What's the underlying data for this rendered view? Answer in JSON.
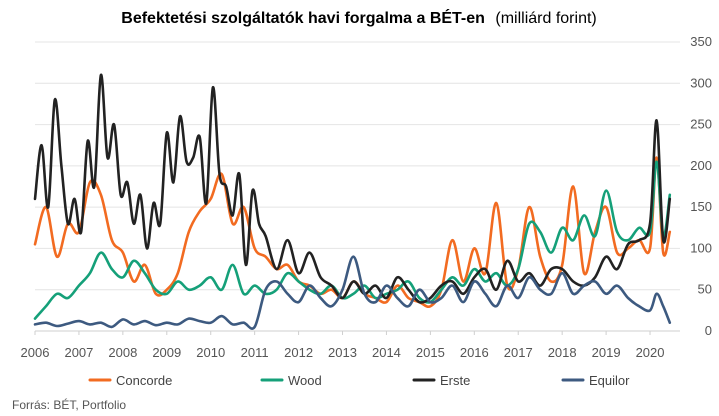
{
  "chart_data": {
    "type": "line",
    "title": "Befektetési szolgáltatók havi forgalma a BÉT-en",
    "title_unit": "(milliárd forint)",
    "source": "Forrás: BÉT, Portfolio",
    "ylim": [
      0,
      350
    ],
    "yticks": [
      "0",
      "50",
      "100",
      "150",
      "200",
      "250",
      "300",
      "350"
    ],
    "xlim": [
      2006,
      2020.5
    ],
    "xticks": [
      "2006",
      "2007",
      "2008",
      "2009",
      "2010",
      "2011",
      "2012",
      "2013",
      "2014",
      "2015",
      "2016",
      "2017",
      "2018",
      "2019",
      "2020"
    ],
    "grid": "horizontal",
    "legend_position": "bottom",
    "series": [
      {
        "name": "Concorde",
        "color": "#F26B21",
        "x": [
          2006.0,
          2006.25,
          2006.5,
          2006.75,
          2007.0,
          2007.25,
          2007.5,
          2007.75,
          2008.0,
          2008.25,
          2008.5,
          2008.75,
          2009.0,
          2009.25,
          2009.5,
          2009.75,
          2010.0,
          2010.25,
          2010.5,
          2010.75,
          2011.0,
          2011.25,
          2011.5,
          2011.75,
          2012.0,
          2012.25,
          2012.5,
          2012.75,
          2013.0,
          2013.25,
          2013.5,
          2013.75,
          2014.0,
          2014.25,
          2014.5,
          2014.75,
          2015.0,
          2015.25,
          2015.5,
          2015.75,
          2016.0,
          2016.25,
          2016.5,
          2016.75,
          2017.0,
          2017.25,
          2017.5,
          2017.75,
          2018.0,
          2018.25,
          2018.5,
          2018.75,
          2019.0,
          2019.25,
          2019.5,
          2019.75,
          2020.0,
          2020.15,
          2020.3,
          2020.45
        ],
        "values": [
          105,
          150,
          90,
          130,
          120,
          180,
          165,
          110,
          95,
          60,
          80,
          45,
          50,
          70,
          120,
          145,
          160,
          190,
          130,
          150,
          100,
          90,
          75,
          80,
          60,
          55,
          45,
          50,
          40,
          60,
          45,
          40,
          35,
          55,
          40,
          35,
          30,
          50,
          110,
          60,
          100,
          70,
          155,
          55,
          75,
          150,
          90,
          60,
          80,
          175,
          70,
          120,
          150,
          95,
          100,
          110,
          100,
          210,
          95,
          120
        ]
      },
      {
        "name": "Wood",
        "color": "#15A079",
        "x": [
          2006.0,
          2006.25,
          2006.5,
          2006.75,
          2007.0,
          2007.25,
          2007.5,
          2007.75,
          2008.0,
          2008.25,
          2008.5,
          2008.75,
          2009.0,
          2009.25,
          2009.5,
          2009.75,
          2010.0,
          2010.25,
          2010.5,
          2010.75,
          2011.0,
          2011.25,
          2011.5,
          2011.75,
          2012.0,
          2012.25,
          2012.5,
          2012.75,
          2013.0,
          2013.25,
          2013.5,
          2013.75,
          2014.0,
          2014.25,
          2014.5,
          2014.75,
          2015.0,
          2015.25,
          2015.5,
          2015.75,
          2016.0,
          2016.25,
          2016.5,
          2016.75,
          2017.0,
          2017.25,
          2017.5,
          2017.75,
          2018.0,
          2018.25,
          2018.5,
          2018.75,
          2019.0,
          2019.25,
          2019.5,
          2019.75,
          2020.0,
          2020.15,
          2020.3,
          2020.45
        ],
        "values": [
          15,
          30,
          45,
          40,
          55,
          70,
          95,
          75,
          65,
          85,
          70,
          50,
          45,
          60,
          50,
          55,
          65,
          50,
          80,
          45,
          55,
          45,
          50,
          70,
          60,
          50,
          45,
          55,
          40,
          45,
          55,
          40,
          45,
          50,
          60,
          40,
          35,
          50,
          65,
          55,
          75,
          60,
          70,
          55,
          75,
          130,
          120,
          95,
          125,
          110,
          140,
          115,
          170,
          120,
          110,
          125,
          120,
          205,
          115,
          165
        ]
      },
      {
        "name": "Erste",
        "color": "#222222",
        "x": [
          2006.0,
          2006.15,
          2006.3,
          2006.45,
          2006.6,
          2006.75,
          2006.9,
          2007.05,
          2007.2,
          2007.35,
          2007.5,
          2007.65,
          2007.8,
          2007.95,
          2008.1,
          2008.25,
          2008.4,
          2008.55,
          2008.7,
          2008.85,
          2009.0,
          2009.15,
          2009.3,
          2009.45,
          2009.6,
          2009.75,
          2009.9,
          2010.05,
          2010.2,
          2010.35,
          2010.5,
          2010.65,
          2010.8,
          2010.95,
          2011.1,
          2011.25,
          2011.5,
          2011.75,
          2012.0,
          2012.25,
          2012.5,
          2012.75,
          2013.0,
          2013.25,
          2013.5,
          2013.75,
          2014.0,
          2014.25,
          2014.5,
          2014.75,
          2015.0,
          2015.25,
          2015.5,
          2015.75,
          2016.0,
          2016.25,
          2016.5,
          2016.75,
          2017.0,
          2017.25,
          2017.5,
          2017.75,
          2018.0,
          2018.25,
          2018.5,
          2018.75,
          2019.0,
          2019.25,
          2019.5,
          2019.75,
          2020.0,
          2020.15,
          2020.3,
          2020.45
        ],
        "values": [
          160,
          225,
          150,
          280,
          200,
          130,
          160,
          120,
          230,
          175,
          310,
          210,
          250,
          165,
          180,
          130,
          165,
          100,
          155,
          130,
          240,
          180,
          260,
          205,
          210,
          235,
          155,
          295,
          190,
          175,
          140,
          190,
          80,
          170,
          130,
          115,
          75,
          110,
          70,
          95,
          65,
          55,
          40,
          60,
          45,
          55,
          40,
          65,
          50,
          35,
          40,
          55,
          60,
          45,
          65,
          75,
          50,
          85,
          60,
          70,
          55,
          75,
          75,
          60,
          55,
          65,
          90,
          75,
          105,
          110,
          130,
          255,
          110,
          160
        ]
      },
      {
        "name": "Equilor",
        "color": "#3D5A80",
        "x": [
          2006.0,
          2006.25,
          2006.5,
          2006.75,
          2007.0,
          2007.25,
          2007.5,
          2007.75,
          2008.0,
          2008.25,
          2008.5,
          2008.75,
          2009.0,
          2009.25,
          2009.5,
          2009.75,
          2010.0,
          2010.25,
          2010.5,
          2010.75,
          2011.0,
          2011.25,
          2011.5,
          2011.75,
          2012.0,
          2012.25,
          2012.5,
          2012.75,
          2013.0,
          2013.25,
          2013.5,
          2013.75,
          2014.0,
          2014.25,
          2014.5,
          2014.75,
          2015.0,
          2015.25,
          2015.5,
          2015.75,
          2016.0,
          2016.25,
          2016.5,
          2016.75,
          2017.0,
          2017.25,
          2017.5,
          2017.75,
          2018.0,
          2018.25,
          2018.5,
          2018.75,
          2019.0,
          2019.25,
          2019.5,
          2019.75,
          2020.0,
          2020.15,
          2020.3,
          2020.45
        ],
        "values": [
          8,
          10,
          6,
          9,
          12,
          8,
          10,
          5,
          14,
          8,
          12,
          7,
          10,
          8,
          15,
          12,
          10,
          18,
          8,
          10,
          5,
          50,
          60,
          45,
          35,
          55,
          40,
          30,
          50,
          90,
          45,
          35,
          55,
          40,
          30,
          50,
          35,
          40,
          55,
          35,
          60,
          45,
          30,
          55,
          40,
          65,
          50,
          45,
          70,
          45,
          55,
          60,
          45,
          55,
          40,
          30,
          25,
          45,
          30,
          10
        ]
      }
    ]
  }
}
